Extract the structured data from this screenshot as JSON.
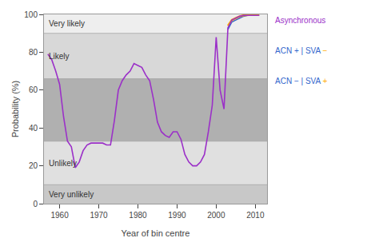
{
  "chart_data": {
    "type": "line",
    "xlabel": "Year of bin centre",
    "ylabel": "Probability (%)",
    "xlim": [
      1956,
      2013
    ],
    "ylim": [
      0,
      100
    ],
    "xticks": [
      1960,
      1970,
      1980,
      1990,
      2000,
      2010
    ],
    "yticks": [
      0,
      20,
      40,
      60,
      80,
      100
    ],
    "grid": false,
    "series": [
      {
        "color": "#9b30c8",
        "x": [
          1957,
          1958,
          1959,
          1960,
          1961,
          1962,
          1963,
          1964,
          1965,
          1966,
          1967,
          1968,
          1969,
          1970,
          1971,
          1972,
          1973,
          1974,
          1975,
          1976,
          1977,
          1978,
          1979,
          1980,
          1981,
          1982,
          1983,
          1984,
          1985,
          1986,
          1987,
          1988,
          1989,
          1990,
          1991,
          1992,
          1993,
          1994,
          1995,
          1996,
          1997,
          1998,
          1999,
          2000,
          2001,
          2002,
          2003,
          2004,
          2005,
          2006,
          2007,
          2008,
          2009,
          2010,
          2011
        ],
        "values": [
          79,
          76,
          70,
          63,
          46,
          33,
          30,
          19,
          22,
          28,
          31,
          32,
          32,
          32,
          32,
          31,
          31,
          44,
          60,
          65,
          68,
          70,
          74,
          73,
          72,
          68,
          65,
          55,
          43,
          38,
          36,
          35,
          38,
          38,
          34,
          26,
          22,
          20,
          20,
          22,
          26,
          38,
          52,
          88,
          60,
          50,
          93,
          97,
          98,
          99,
          99.5,
          99.5,
          99.5,
          99.5,
          99.5
        ]
      },
      {
        "color": "#ffaa00",
        "x": [
          2003,
          2004,
          2005,
          2006,
          2007,
          2008,
          2009,
          2010,
          2011
        ],
        "values": [
          94,
          97,
          98,
          99,
          99.5,
          99.8,
          99.8,
          99.8,
          99.8
        ]
      },
      {
        "color": "#3366cc",
        "x": [
          2003,
          2004,
          2005,
          2006,
          2007,
          2008,
          2009,
          2010,
          2011
        ],
        "values": [
          92,
          96,
          97,
          98,
          99,
          99.5,
          99.5,
          99.5,
          99.5
        ]
      }
    ],
    "zones": [
      {
        "range": [
          0,
          10
        ],
        "color": "#c8c8c8",
        "label": "Very unlikely"
      },
      {
        "range": [
          10,
          33
        ],
        "color": "#e0e0e0",
        "label": "Unlikely"
      },
      {
        "range": [
          33,
          66
        ],
        "color": "#b0b0b0"
      },
      {
        "range": [
          66,
          90
        ],
        "color": "#d8d8d8",
        "label": "Likely"
      },
      {
        "range": [
          90,
          100
        ],
        "color": "#eeeeee",
        "label": "Very likely"
      }
    ],
    "annotations": [
      {
        "parts": [
          {
            "text": "Asynchronous",
            "color": "#9b30c8"
          }
        ]
      },
      {
        "parts": [
          {
            "text": "ACN + | SVA ",
            "color": "#3366cc"
          },
          {
            "text": "−",
            "color": "#ffaa00"
          }
        ]
      },
      {
        "parts": [
          {
            "text": "ACN − | SVA ",
            "color": "#3366cc"
          },
          {
            "text": "+",
            "color": "#ffaa00"
          }
        ]
      }
    ]
  }
}
